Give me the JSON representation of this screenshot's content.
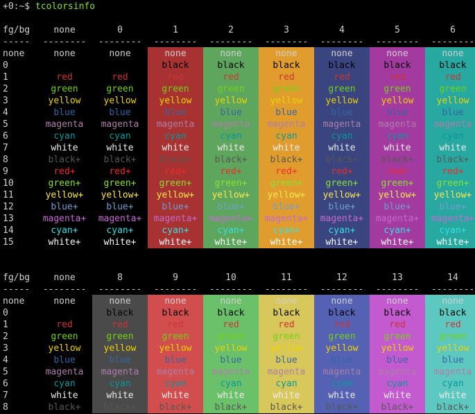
{
  "prompt": {
    "prefix": "+0:~$ ",
    "command": "tcolorsinfo"
  },
  "colors": {
    "default_fg": "#d0d0d0",
    "default_bg": "#000000",
    "palette": {
      "0": "#000000",
      "1": "#cc3333",
      "2": "#73d216",
      "3": "#edd400",
      "4": "#3465a4",
      "5": "#ad7fa8",
      "6": "#06989a",
      "7": "#eeeeec",
      "8": "#555753",
      "9": "#ef2929",
      "10": "#8ae234",
      "11": "#fce94f",
      "12": "#729fcf",
      "13": "#c46ad2",
      "14": "#34e2e2",
      "15": "#ffffff"
    },
    "column_bg": {
      "0": "#000000",
      "1": "#a83232",
      "2": "#5ea65e",
      "3": "#e09d2d",
      "4": "#3a4580",
      "5": "#a23aa0",
      "6": "#27a8a0",
      "8": "#4a4a4a",
      "9": "#d24d4d",
      "10": "#6ac16a",
      "11": "#d8c75a",
      "12": "#5561b3",
      "13": "#c45ad0",
      "14": "#5dc8c0"
    }
  },
  "tables": [
    {
      "header_label": "fg/bg",
      "columns": [
        "none",
        "0",
        "1",
        "2",
        "3",
        "4",
        "5",
        "6"
      ],
      "separator": "--------",
      "row_labels": [
        "none",
        "0",
        "1",
        "2",
        "3",
        "4",
        "5",
        "6",
        "7",
        "8",
        "9",
        "10",
        "11",
        "12",
        "13",
        "14",
        "15"
      ],
      "cell_text": [
        "none",
        "black",
        "red",
        "green",
        "yellow",
        "blue",
        "magenta",
        "cyan",
        "white",
        "black+",
        "red+",
        "green+",
        "yellow+",
        "blue+",
        "magenta+",
        "cyan+",
        "white+"
      ]
    },
    {
      "header_label": "fg/bg",
      "columns": [
        "none",
        "8",
        "9",
        "10",
        "11",
        "12",
        "13",
        "14"
      ],
      "separator": "--------",
      "row_labels": [
        "none",
        "0",
        "1",
        "2",
        "3",
        "4",
        "5",
        "6",
        "7",
        "8"
      ],
      "cell_text": [
        "none",
        "black",
        "red",
        "green",
        "yellow",
        "blue",
        "magenta",
        "cyan",
        "white",
        "black+"
      ]
    }
  ]
}
